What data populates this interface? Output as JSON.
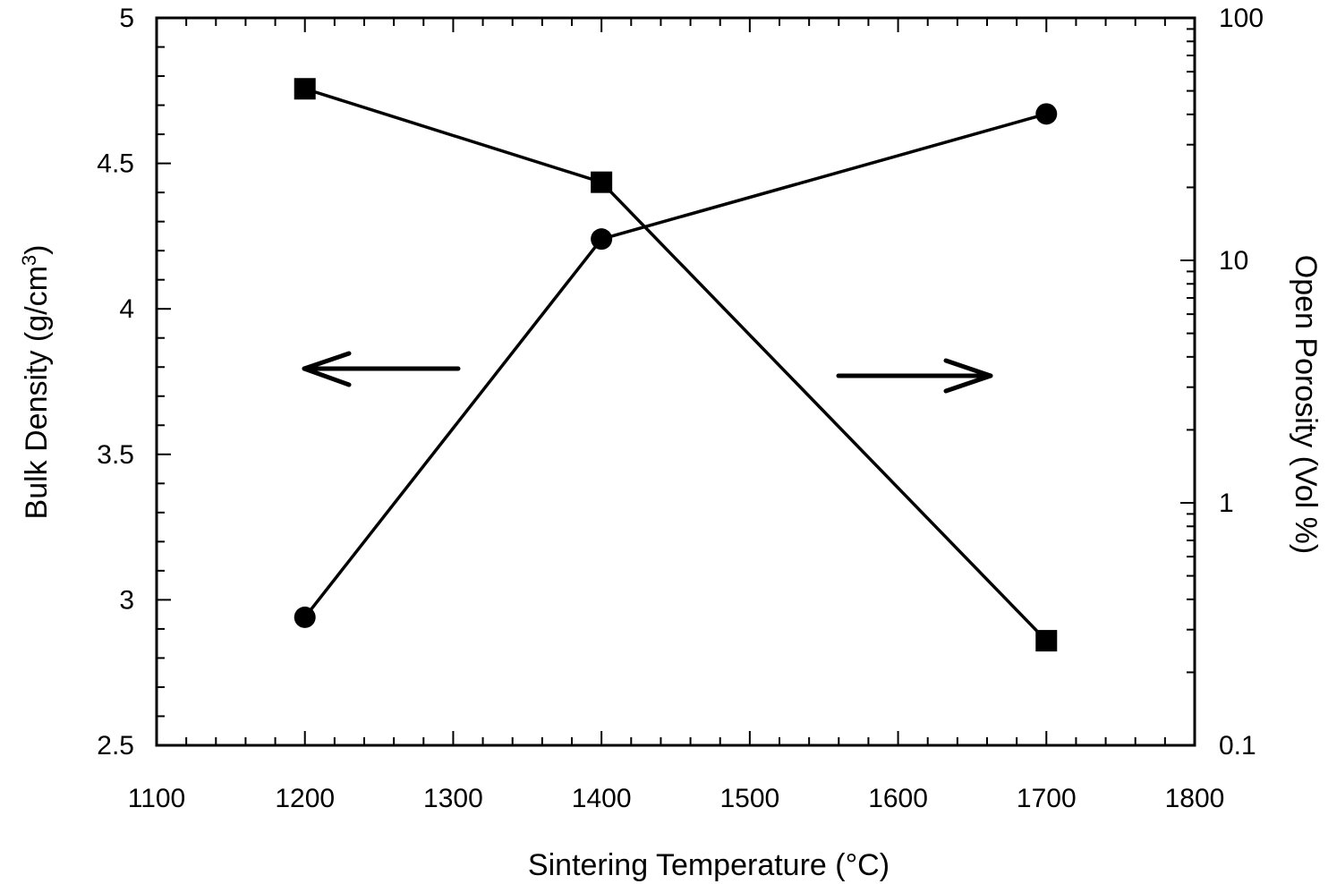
{
  "chart_data": {
    "type": "line",
    "xlabel": "Sintering Temperature (°C)",
    "ylabel_left": "Bulk Density (g/cm",
    "ylabel_left_sup": "3",
    "ylabel_left_end": ")",
    "ylabel_right": "Open Porosity (Vol %)",
    "xlim": [
      1100,
      1800
    ],
    "ylim_left": [
      2.5,
      5
    ],
    "ylim_right": [
      0.1,
      100
    ],
    "right_scale": "log",
    "x_ticks": [
      "1100",
      "1200",
      "1300",
      "1400",
      "1500",
      "1600",
      "1700",
      "1800"
    ],
    "y_left_ticks": [
      "2.5",
      "3",
      "3.5",
      "4",
      "4.5",
      "5"
    ],
    "y_right_ticks": [
      "0.1",
      "1",
      "10",
      "100"
    ],
    "grid": false,
    "series": [
      {
        "marker": "circle",
        "axis": "left",
        "x": [
          1200,
          1400,
          1700
        ],
        "values": [
          2.94,
          4.24,
          4.67
        ]
      },
      {
        "marker": "square",
        "axis": "right",
        "x": [
          1200,
          1400,
          1700
        ],
        "values": [
          51,
          21,
          0.27
        ]
      }
    ],
    "annotations": [
      {
        "type": "arrow",
        "direction": "left",
        "meaning": "left axis"
      },
      {
        "type": "arrow",
        "direction": "right",
        "meaning": "right axis"
      }
    ]
  }
}
